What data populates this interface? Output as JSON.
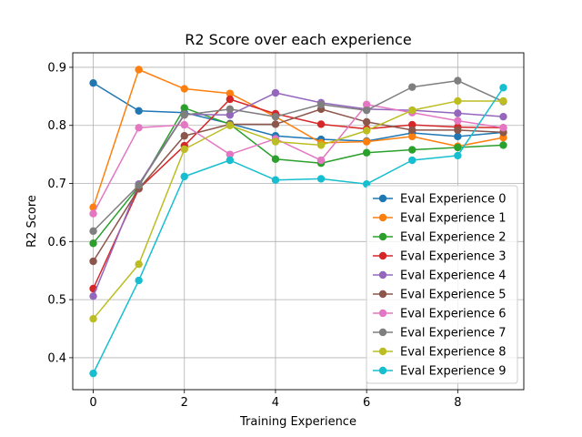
{
  "chart_data": {
    "type": "line",
    "title": "R2 Score over each experience",
    "xlabel": "Training Experience",
    "ylabel": "R2 Score",
    "xlim": [
      -0.45,
      9.45
    ],
    "ylim": [
      0.345,
      0.925
    ],
    "xticks": [
      0,
      2,
      4,
      6,
      8
    ],
    "xtick_labels": [
      "0",
      "2",
      "4",
      "6",
      "8"
    ],
    "yticks": [
      0.4,
      0.5,
      0.6,
      0.7,
      0.8,
      0.9
    ],
    "ytick_labels": [
      "0.4",
      "0.5",
      "0.6",
      "0.7",
      "0.8",
      "0.9"
    ],
    "grid": true,
    "legend_position": "lower-right",
    "x": [
      0,
      1,
      2,
      3,
      4,
      5,
      6,
      7,
      8,
      9
    ],
    "series": [
      {
        "name": "Eval Experience 0",
        "color": "#1f77b4",
        "values": [
          0.873,
          0.825,
          0.822,
          0.803,
          0.782,
          0.776,
          0.773,
          0.787,
          0.781,
          0.788
        ]
      },
      {
        "name": "Eval Experience 1",
        "color": "#ff7f0e",
        "values": [
          0.659,
          0.896,
          0.863,
          0.855,
          0.815,
          0.77,
          0.772,
          0.781,
          0.764,
          0.779
        ]
      },
      {
        "name": "Eval Experience 2",
        "color": "#2ca02c",
        "values": [
          0.597,
          0.695,
          0.83,
          0.802,
          0.742,
          0.735,
          0.753,
          0.758,
          0.762,
          0.766
        ]
      },
      {
        "name": "Eval Experience 3",
        "color": "#d62728",
        "values": [
          0.519,
          0.691,
          0.765,
          0.845,
          0.82,
          0.802,
          0.794,
          0.801,
          0.797,
          0.796
        ]
      },
      {
        "name": "Eval Experience 4",
        "color": "#9467bd",
        "values": [
          0.506,
          0.699,
          0.819,
          0.818,
          0.856,
          0.839,
          0.828,
          0.826,
          0.821,
          0.815
        ]
      },
      {
        "name": "Eval Experience 5",
        "color": "#8c564b",
        "values": [
          0.566,
          0.691,
          0.782,
          0.802,
          0.802,
          0.828,
          0.806,
          0.792,
          0.792,
          0.788
        ]
      },
      {
        "name": "Eval Experience 6",
        "color": "#e377c2",
        "values": [
          0.648,
          0.796,
          0.801,
          0.75,
          0.777,
          0.74,
          0.836,
          0.822,
          0.808,
          0.796
        ]
      },
      {
        "name": "Eval Experience 7",
        "color": "#7f7f7f",
        "values": [
          0.618,
          0.697,
          0.818,
          0.828,
          0.815,
          0.836,
          0.826,
          0.866,
          0.877,
          0.841
        ]
      },
      {
        "name": "Eval Experience 8",
        "color": "#bcbd22",
        "values": [
          0.467,
          0.561,
          0.759,
          0.8,
          0.772,
          0.766,
          0.791,
          0.826,
          0.842,
          0.842
        ]
      },
      {
        "name": "Eval Experience 9",
        "color": "#17becf",
        "values": [
          0.373,
          0.533,
          0.712,
          0.74,
          0.706,
          0.708,
          0.699,
          0.74,
          0.748,
          0.865
        ]
      }
    ]
  }
}
